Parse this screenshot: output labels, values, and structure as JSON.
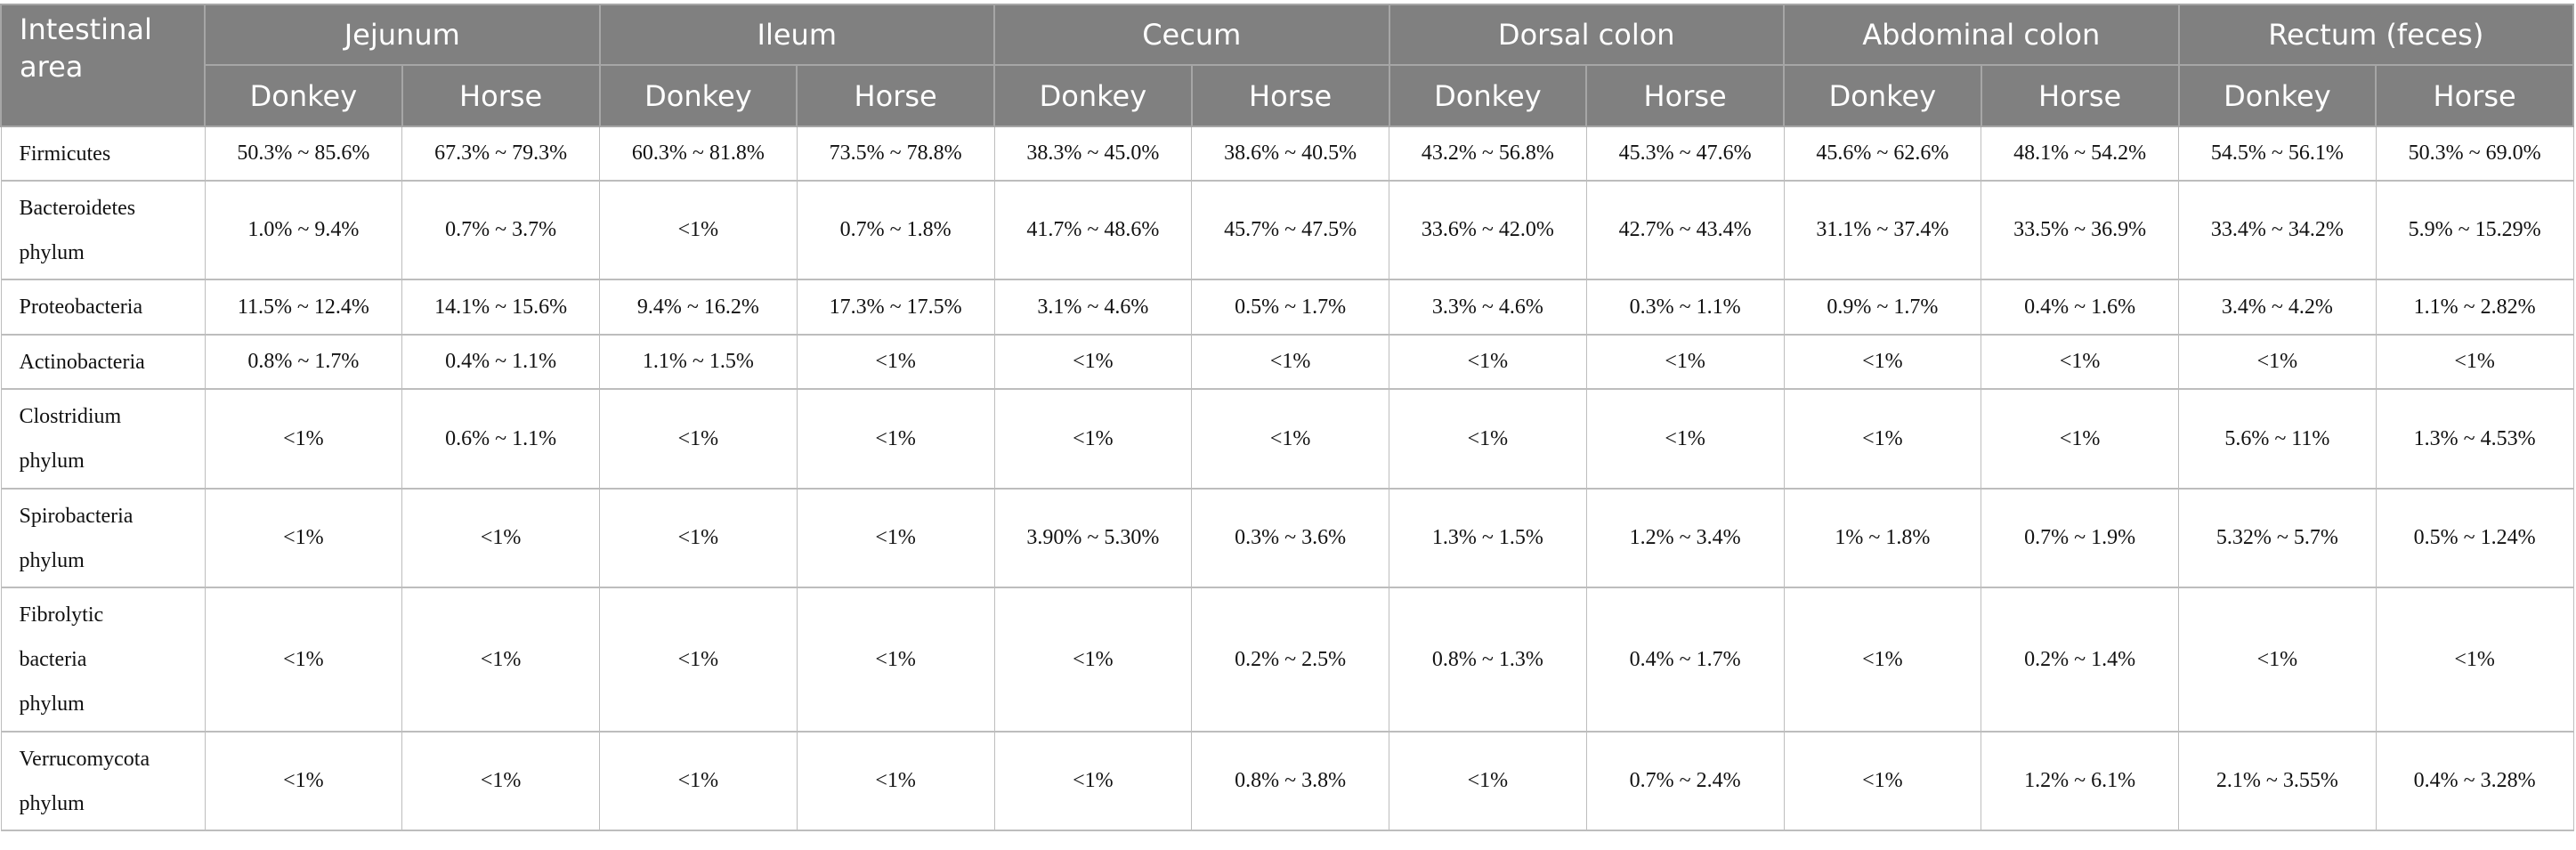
{
  "header": {
    "corner": "Intestinal area",
    "areas": [
      "Jejunum",
      "Ileum",
      "Cecum",
      "Dorsal colon",
      "Abdominal colon",
      "Rectum (feces)"
    ],
    "species": [
      "Donkey",
      "Horse"
    ]
  },
  "rows": [
    {
      "label": "Firmicutes",
      "values": [
        "50.3% ~ 85.6%",
        "67.3% ~ 79.3%",
        "60.3% ~ 81.8%",
        "73.5% ~ 78.8%",
        "38.3% ~ 45.0%",
        "38.6% ~ 40.5%",
        "43.2% ~ 56.8%",
        "45.3% ~ 47.6%",
        "45.6% ~ 62.6%",
        "48.1% ~ 54.2%",
        "54.5% ~ 56.1%",
        "50.3% ~ 69.0%"
      ]
    },
    {
      "label": "Bacteroidetes phylum",
      "values": [
        "1.0% ~ 9.4%",
        "0.7% ~ 3.7%",
        "<1%",
        "0.7% ~ 1.8%",
        "41.7% ~ 48.6%",
        "45.7% ~ 47.5%",
        "33.6% ~ 42.0%",
        "42.7% ~ 43.4%",
        "31.1% ~ 37.4%",
        "33.5% ~ 36.9%",
        "33.4% ~ 34.2%",
        "5.9% ~ 15.29%"
      ]
    },
    {
      "label": "Proteobacteria",
      "values": [
        "11.5% ~ 12.4%",
        "14.1% ~ 15.6%",
        "9.4% ~ 16.2%",
        "17.3% ~ 17.5%",
        "3.1% ~ 4.6%",
        "0.5% ~ 1.7%",
        "3.3% ~ 4.6%",
        "0.3% ~ 1.1%",
        "0.9% ~ 1.7%",
        "0.4% ~ 1.6%",
        "3.4% ~ 4.2%",
        "1.1% ~ 2.82%"
      ]
    },
    {
      "label": "Actinobacteria",
      "values": [
        "0.8% ~ 1.7%",
        "0.4% ~ 1.1%",
        "1.1% ~ 1.5%",
        "<1%",
        "<1%",
        "<1%",
        "<1%",
        "<1%",
        "<1%",
        "<1%",
        "<1%",
        "<1%"
      ]
    },
    {
      "label": "Clostridium phylum",
      "values": [
        "<1%",
        "0.6% ~ 1.1%",
        "<1%",
        "<1%",
        "<1%",
        "<1%",
        "<1%",
        "<1%",
        "<1%",
        "<1%",
        "5.6% ~ 11%",
        "1.3% ~ 4.53%"
      ]
    },
    {
      "label": "Spirobacteria phylum",
      "values": [
        "<1%",
        "<1%",
        "<1%",
        "<1%",
        "3.90% ~ 5.30%",
        "0.3% ~ 3.6%",
        "1.3% ~ 1.5%",
        "1.2% ~ 3.4%",
        "1% ~ 1.8%",
        "0.7% ~ 1.9%",
        "5.32% ~ 5.7%",
        "0.5% ~ 1.24%"
      ]
    },
    {
      "label": "Fibrolytic bacteria phylum",
      "values": [
        "<1%",
        "<1%",
        "<1%",
        "<1%",
        "<1%",
        "0.2% ~ 2.5%",
        "0.8% ~ 1.3%",
        "0.4% ~ 1.7%",
        "<1%",
        "0.2% ~ 1.4%",
        "<1%",
        "<1%"
      ]
    },
    {
      "label": "Verrucomycota phylum",
      "values": [
        "<1%",
        "<1%",
        "<1%",
        "<1%",
        "<1%",
        "0.8% ~ 3.8%",
        "<1%",
        "0.7% ~ 2.4%",
        "<1%",
        "1.2% ~ 6.1%",
        "2.1% ~ 3.55%",
        "0.4% ~ 3.28%"
      ]
    }
  ]
}
